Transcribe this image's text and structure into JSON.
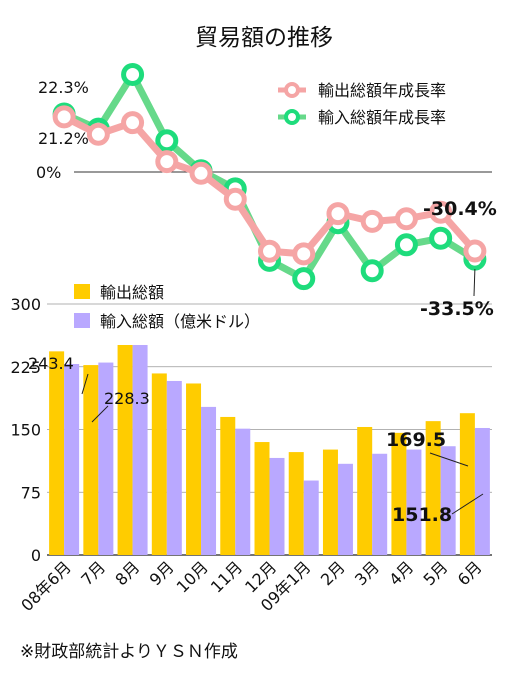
{
  "title": "貿易額の推移",
  "footnote": "※財政部統計よりＹＳＮ作成",
  "colors": {
    "export_bar": "#ffcc00",
    "import_bar": "#b9a8ff",
    "export_line": "#f5a5a5",
    "import_line": "#66d98a",
    "import_marker": "#1edc7c",
    "axis": "#222222",
    "grid": "#999999"
  },
  "chart_data": [
    {
      "type": "line",
      "categories": [
        "08年6月",
        "7月",
        "8月",
        "9月",
        "10月",
        "11月",
        "12月",
        "09年1月",
        "2月",
        "3月",
        "4月",
        "5月",
        "6月"
      ],
      "series": [
        {
          "name": "輸出総額年成長率",
          "values": [
            21.2,
            14.5,
            19.0,
            4.0,
            -0.5,
            -10.5,
            -30.5,
            -31.5,
            -16.0,
            -19.0,
            -18.0,
            -15.5,
            -30.4
          ]
        },
        {
          "name": "輸入総額年成長率",
          "values": [
            22.3,
            16.5,
            37.5,
            12.0,
            0.5,
            -6.5,
            -34.0,
            -41.0,
            -19.5,
            -38.0,
            -28.0,
            -25.5,
            -33.5
          ]
        }
      ],
      "zero_line_label": "0%",
      "annotations": [
        {
          "text": "22.3%",
          "series": "輸入総額年成長率",
          "index": 0
        },
        {
          "text": "21.2%",
          "series": "輸出総額年成長率",
          "index": 0
        },
        {
          "text": "-30.4%",
          "series": "輸出総額年成長率",
          "index": 12
        },
        {
          "text": "-33.5%",
          "series": "輸入総額年成長率",
          "index": 12
        }
      ],
      "legend_position": "top-right"
    },
    {
      "type": "bar",
      "categories": [
        "08年6月",
        "7月",
        "8月",
        "9月",
        "10月",
        "11月",
        "12月",
        "09年1月",
        "2月",
        "3月",
        "4月",
        "5月",
        "6月"
      ],
      "series": [
        {
          "name": "輸出総額",
          "values": [
            243.4,
            227,
            251,
            217,
            205,
            165,
            135,
            123,
            126,
            153,
            146,
            160,
            169.5
          ]
        },
        {
          "name": "輸入総額（億米ドル）",
          "values": [
            228.3,
            230,
            251,
            208,
            177,
            151,
            116,
            89,
            109,
            121,
            126,
            130,
            151.8
          ]
        }
      ],
      "y_ticks": [
        "0",
        "75",
        "150",
        "225",
        "300"
      ],
      "ylim": [
        0,
        300
      ],
      "grid": true,
      "annotations": [
        {
          "text": "243.4",
          "series": "輸出総額",
          "index": 0
        },
        {
          "text": "228.3",
          "series": "輸入総額（億米ドル）",
          "index": 0
        },
        {
          "text": "169.5",
          "series": "輸出総額",
          "index": 12
        },
        {
          "text": "151.8",
          "series": "輸入総額（億米ドル）",
          "index": 12
        }
      ],
      "legend_position": "top-left"
    }
  ]
}
